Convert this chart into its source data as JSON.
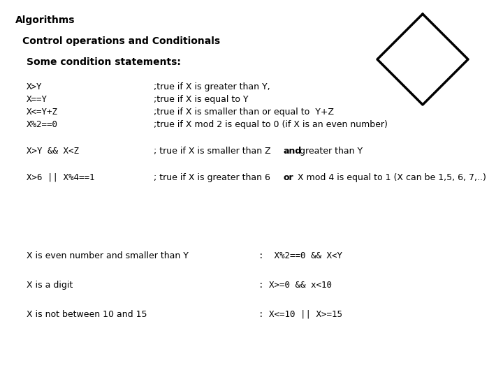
{
  "title": "Algorithms",
  "subtitle": "Control operations and Conditionals",
  "section": "Some condition statements:",
  "conditions": [
    [
      "X>Y",
      ";true if X is greater than Y,"
    ],
    [
      "X==Y",
      ";true if X is equal to Y"
    ],
    [
      "X<=Y+Z",
      ";true if X is smaller than or equal to  Y+Z"
    ],
    [
      "X%2==0",
      ";true if X mod 2 is equal to 0 (if X is an even number)"
    ]
  ],
  "cond2_code": "X>Y && X<Z",
  "cond2_before": "; true if X is smaller than Z ",
  "cond2_bold": "and",
  "cond2_after": " greater than Y",
  "cond3_code": "X>6 || X%4==1",
  "cond3_before": "; true if X is greater than 6 ",
  "cond3_bold": "or",
  "cond3_after": "  X mod 4 is equal to 1 (X can be 1,5, 6, 7,..)",
  "examples": [
    [
      "X is even number and smaller than Y",
      ":  X%2==0 && X<Y"
    ],
    [
      "X is a digit",
      ": X>=0 && x<10"
    ],
    [
      "X is not between 10 and 15",
      ": X<=10 || X>=15"
    ]
  ],
  "bg_color": "#ffffff",
  "text_color": "#000000",
  "title_fontsize": 10,
  "subtitle_fontsize": 10,
  "body_fontsize": 9
}
